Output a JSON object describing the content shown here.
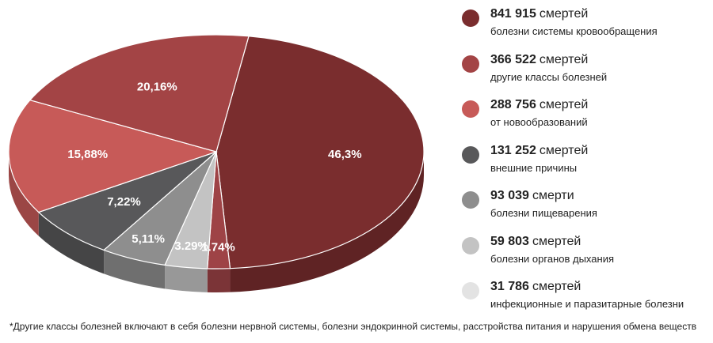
{
  "chart_data": {
    "type": "pie",
    "style": "3d-perspective",
    "slices": [
      {
        "label": "46,3%",
        "value": 46.3,
        "color": "#7a2d2e"
      },
      {
        "label": "1.74%",
        "value": 1.74,
        "color": "#9e4346"
      },
      {
        "label": "3.29%",
        "value": 3.29,
        "color": "#c3c3c3"
      },
      {
        "label": "5,11%",
        "value": 5.11,
        "color": "#8e8e8e"
      },
      {
        "label": "7,22%",
        "value": 7.22,
        "color": "#58585a"
      },
      {
        "label": "15,88%",
        "value": 15.88,
        "color": "#c75a58"
      },
      {
        "label": "20,16%",
        "value": 20.16,
        "color": "#a34445"
      }
    ]
  },
  "legend": [
    {
      "number": "841 915",
      "unit": "смертей",
      "desc": "болезни системы кровообращения",
      "color": "#7a2d2e"
    },
    {
      "number": "366 522",
      "unit": "смертей",
      "desc": "другие классы болезней",
      "color": "#a34445"
    },
    {
      "number": "288 756",
      "unit": "смертей",
      "desc": "от новообразований",
      "color": "#c75a58"
    },
    {
      "number": "131 252",
      "unit": "смертей",
      "desc": "внешние причины",
      "color": "#58585a"
    },
    {
      "number": "93 039",
      "unit": "смерти",
      "desc": "болезни пищеварения",
      "color": "#8e8e8e"
    },
    {
      "number": "59 803",
      "unit": "смертей",
      "desc": "болезни органов дыхания",
      "color": "#c3c3c3"
    },
    {
      "number": "31 786",
      "unit": "смертей",
      "desc": "инфекционные и паразитарные болезни",
      "color": "#e3e3e3"
    }
  ],
  "footnote": "*Другие классы болезней включают в себя болезни нервной системы, болезни эндокринной системы, расстройства питания и нарушения обмена веществ"
}
